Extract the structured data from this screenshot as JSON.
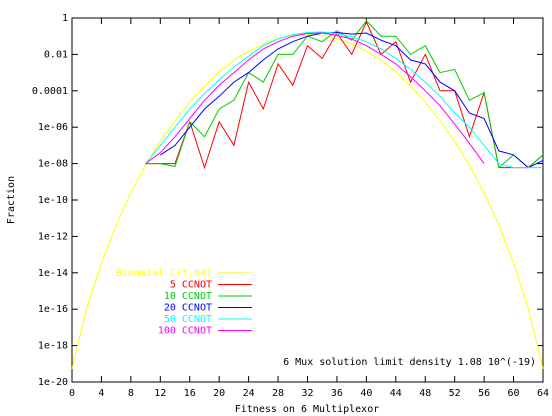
{
  "chart_data": {
    "type": "line",
    "xlabel": "Fitness on 6 Multiplexor",
    "ylabel": "Fraction",
    "xlim": [
      0,
      64
    ],
    "ylim_log10": [
      -20,
      0
    ],
    "y_scale": "log",
    "grid": false,
    "legend_position": "bottom-left",
    "x_ticks": [
      "0",
      "4",
      "8",
      "12",
      "16",
      "20",
      "24",
      "28",
      "32",
      "36",
      "40",
      "44",
      "48",
      "52",
      "56",
      "60",
      "64"
    ],
    "y_ticks": [
      "1",
      "0.01",
      "0.0001",
      "1e-06",
      "1e-08",
      "1e-10",
      "1e-12",
      "1e-14",
      "1e-16",
      "1e-18",
      "1e-20"
    ],
    "annotation": "6 Mux solution limit density 1.08 10^(-19)",
    "series": [
      {
        "name": "Binomial C(*,64)",
        "color": "#ffff00",
        "x": [
          0,
          2,
          4,
          6,
          8,
          10,
          12,
          14,
          16,
          18,
          20,
          22,
          24,
          26,
          28,
          30,
          32,
          34,
          36,
          38,
          40,
          42,
          44,
          46,
          48,
          50,
          52,
          54,
          56,
          58,
          60,
          62,
          64
        ],
        "y": [
          5.4e-20,
          1.1e-16,
          3.4e-14,
          4.3e-12,
          2.5e-10,
          8.1e-09,
          1.7e-07,
          2.2e-06,
          2.5e-05,
          0.00018,
          0.0011,
          0.0048,
          0.015,
          0.037,
          0.074,
          0.11,
          0.13,
          0.11,
          0.074,
          0.037,
          0.015,
          0.0048,
          0.0011,
          0.00018,
          2.5e-05,
          2.2e-06,
          1.7e-07,
          8.1e-09,
          2.5e-10,
          4.3e-12,
          3.4e-14,
          1.1e-16,
          5.4e-20
        ]
      },
      {
        "name": "5 CCNOT",
        "color": "#ff0000",
        "x": [
          10,
          12,
          14,
          16,
          18,
          20,
          22,
          24,
          26,
          28,
          30,
          32,
          34,
          36,
          38,
          40,
          42,
          44,
          46,
          48,
          50,
          52,
          54,
          56,
          58,
          60,
          62,
          64
        ],
        "y": [
          1e-08,
          1e-08,
          1e-08,
          2e-06,
          6e-09,
          2e-06,
          1e-07,
          0.0003,
          1e-05,
          0.003,
          0.0002,
          0.03,
          0.006,
          0.15,
          0.01,
          0.6,
          0.01,
          0.05,
          0.0003,
          0.01,
          0.0001,
          0.0001,
          3e-07,
          8e-05,
          6e-09,
          6e-09,
          6e-09,
          3e-08
        ]
      },
      {
        "name": "10 CCNOT",
        "color": "#00cc00",
        "x": [
          10,
          12,
          14,
          16,
          18,
          20,
          22,
          24,
          26,
          28,
          30,
          32,
          34,
          36,
          38,
          40,
          42,
          44,
          46,
          48,
          50,
          52,
          54,
          56,
          58,
          60,
          62,
          64
        ],
        "y": [
          1e-08,
          1e-08,
          7e-09,
          2e-06,
          3e-07,
          1e-05,
          3e-05,
          0.001,
          0.0003,
          0.01,
          0.01,
          0.1,
          0.05,
          0.2,
          0.06,
          0.7,
          0.1,
          0.1,
          0.01,
          0.03,
          0.001,
          0.0015,
          3e-05,
          8e-05,
          6e-09,
          3e-08,
          6e-09,
          3e-08
        ]
      },
      {
        "name": "20 CCNOT",
        "color": "#0000ff",
        "x": [
          12,
          14,
          16,
          18,
          20,
          22,
          24,
          26,
          28,
          30,
          32,
          34,
          36,
          38,
          40,
          42,
          44,
          46,
          48,
          50,
          52,
          54,
          56,
          58,
          60,
          62,
          64
        ],
        "y": [
          3e-08,
          1e-07,
          1e-06,
          1e-05,
          5e-05,
          0.0003,
          0.001,
          0.005,
          0.02,
          0.05,
          0.1,
          0.15,
          0.16,
          0.13,
          0.15,
          0.06,
          0.03,
          0.005,
          0.003,
          0.0003,
          0.0001,
          6e-06,
          3e-06,
          5e-08,
          3e-08,
          6e-09,
          1.5e-08
        ]
      },
      {
        "name": "50 CCNOT",
        "color": "#00ffff",
        "x": [
          10,
          12,
          14,
          16,
          18,
          20,
          22,
          24,
          26,
          28,
          30,
          32,
          34,
          36,
          38,
          40,
          42,
          44,
          46,
          48,
          50,
          52,
          54,
          56,
          58,
          60,
          62,
          64
        ],
        "y": [
          1e-08,
          1e-07,
          1e-06,
          1e-05,
          7e-05,
          0.0004,
          0.002,
          0.008,
          0.03,
          0.07,
          0.12,
          0.16,
          0.17,
          0.14,
          0.09,
          0.05,
          0.02,
          0.006,
          0.0015,
          0.0003,
          5e-05,
          6e-06,
          1e-06,
          1e-07,
          1e-08,
          6e-09,
          6e-09,
          6e-09
        ]
      },
      {
        "name": "100 CCNOT",
        "color": "#ff00ff",
        "x": [
          10,
          12,
          14,
          16,
          18,
          20,
          22,
          24,
          26,
          28,
          30,
          32,
          34,
          36,
          38,
          40,
          42,
          44,
          46,
          48,
          50,
          52,
          54,
          56
        ],
        "y": [
          1e-08,
          4e-08,
          3e-07,
          3e-06,
          3e-05,
          0.0002,
          0.001,
          0.005,
          0.02,
          0.05,
          0.1,
          0.14,
          0.15,
          0.11,
          0.07,
          0.03,
          0.01,
          0.003,
          0.0006,
          0.0001,
          1.5e-05,
          1.5e-06,
          1.3e-07,
          1e-08
        ]
      }
    ]
  }
}
